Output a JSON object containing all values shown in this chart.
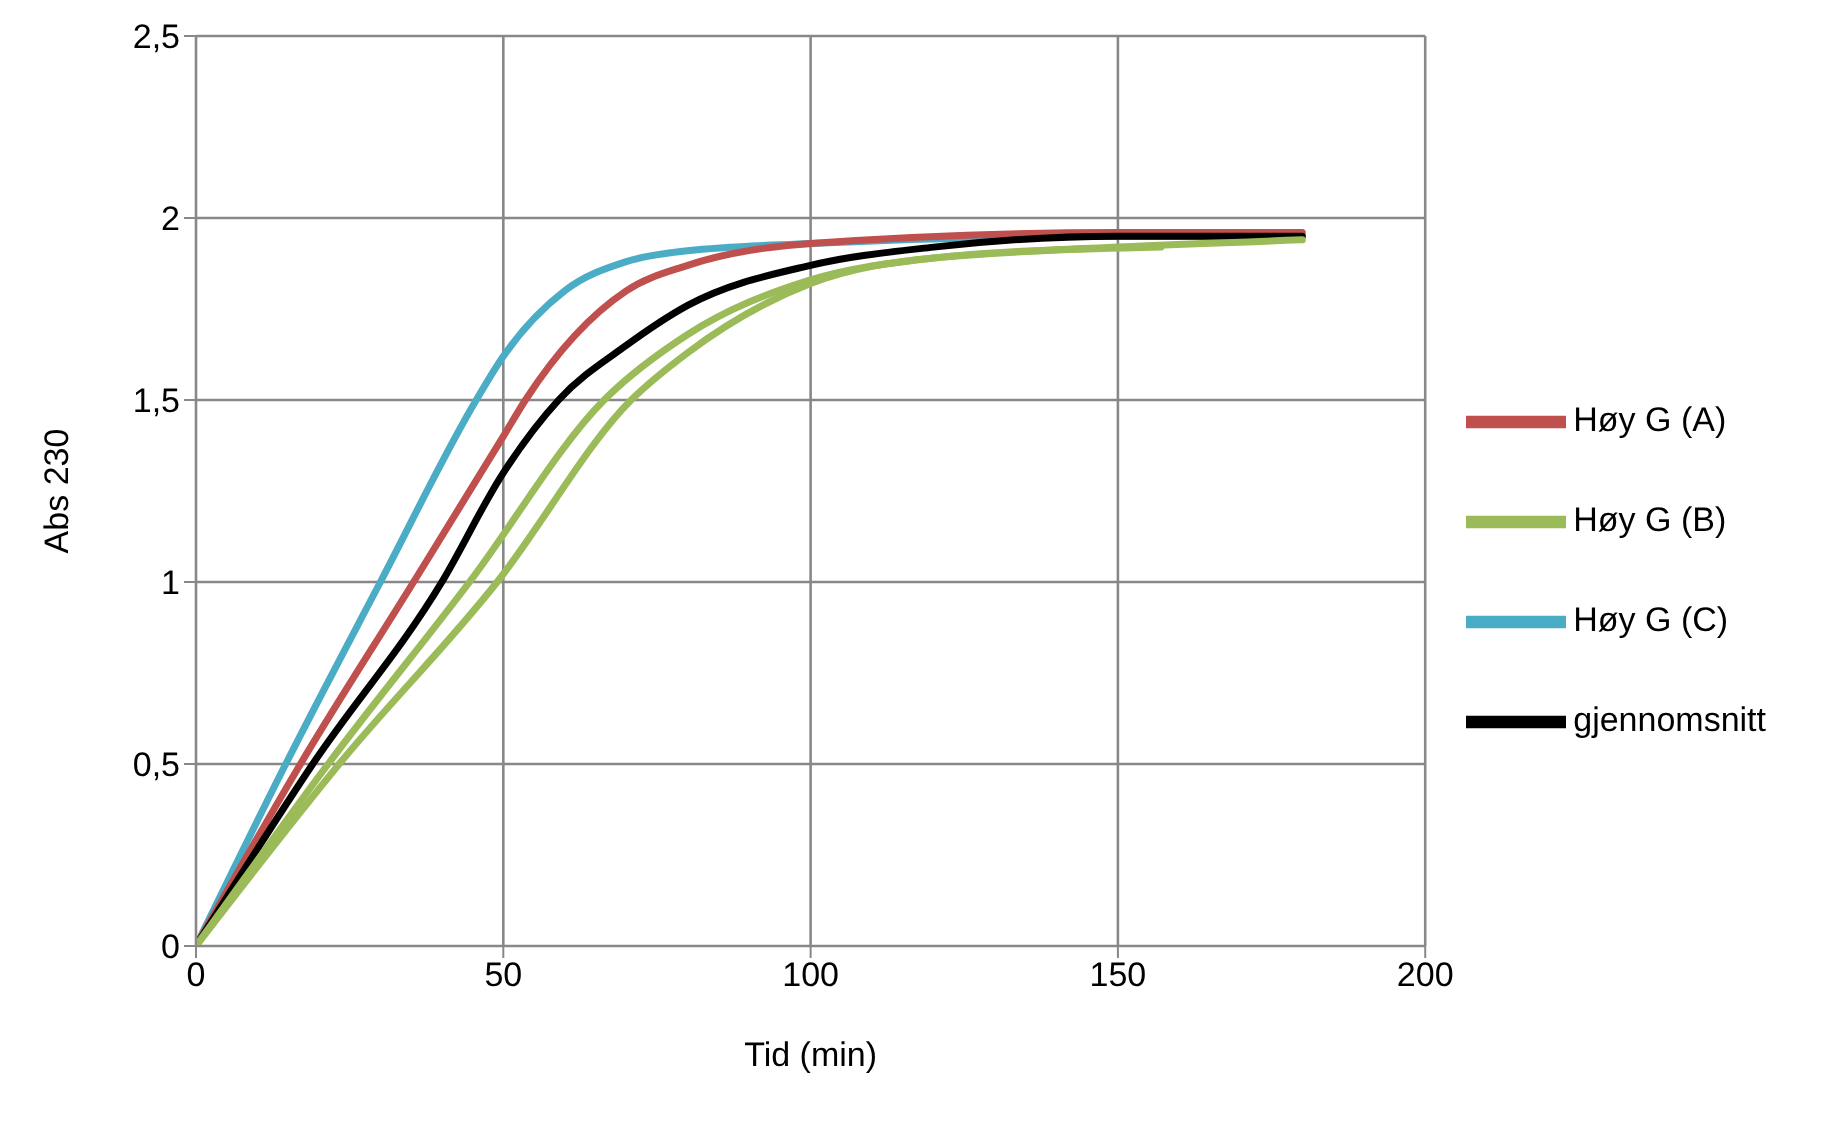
{
  "chart_data": {
    "type": "line",
    "xlabel": "Tid (min)",
    "ylabel": "Abs 230",
    "xlim": [
      0,
      200
    ],
    "xticks": [
      0,
      50,
      100,
      150,
      200
    ],
    "ylim": [
      0,
      2.5
    ],
    "yticks": [
      {
        "value": 0,
        "label": "0"
      },
      {
        "value": 0.5,
        "label": "0,5"
      },
      {
        "value": 1,
        "label": "1"
      },
      {
        "value": 1.5,
        "label": "1,5"
      },
      {
        "value": 2,
        "label": "2"
      },
      {
        "value": 2.5,
        "label": "2,5"
      }
    ],
    "grid": true,
    "legend": "right",
    "marker": "none",
    "line_style": "solid",
    "series": [
      {
        "name": "Høy G (C)",
        "color": "#4bacc6",
        "x": [
          0,
          14.6,
          30,
          45.6,
          50,
          60,
          70,
          80,
          100,
          150,
          180
        ],
        "values": [
          0,
          0.5,
          1,
          1.5,
          1.62,
          1.8,
          1.88,
          1.91,
          1.93,
          1.95,
          1.95
        ]
      },
      {
        "name": "Høy G (A)",
        "color": "#c0504d",
        "x": [
          0,
          17,
          35.4,
          50,
          53.6,
          70,
          80,
          100,
          150,
          180
        ],
        "values": [
          0,
          0.5,
          1,
          1.4,
          1.5,
          1.8,
          1.87,
          1.93,
          1.96,
          1.96
        ]
      },
      {
        "name": "gjennomsnitt",
        "color": "#000000",
        "x": [
          0,
          19,
          40,
          50,
          59,
          70,
          80,
          100,
          120,
          150,
          180
        ],
        "values": [
          0,
          0.5,
          1,
          1.3,
          1.5,
          1.65,
          1.76,
          1.87,
          1.92,
          1.95,
          1.95
        ]
      },
      {
        "name": "Høy G (B)",
        "color": "#9bbb59",
        "x": [
          0,
          21.5,
          44.5,
          66.4,
          80,
          100,
          120,
          150,
          180
        ],
        "values": [
          0,
          0.5,
          1,
          1.5,
          1.68,
          1.83,
          1.89,
          1.92,
          1.94
        ]
      },
      {
        "color": "#9bbb59",
        "x": [
          0,
          23.3,
          49,
          70.8,
          80,
          100,
          120,
          157
        ],
        "values": [
          0,
          0.5,
          1,
          1.5,
          1.63,
          1.82,
          1.89,
          1.92
        ]
      }
    ]
  }
}
